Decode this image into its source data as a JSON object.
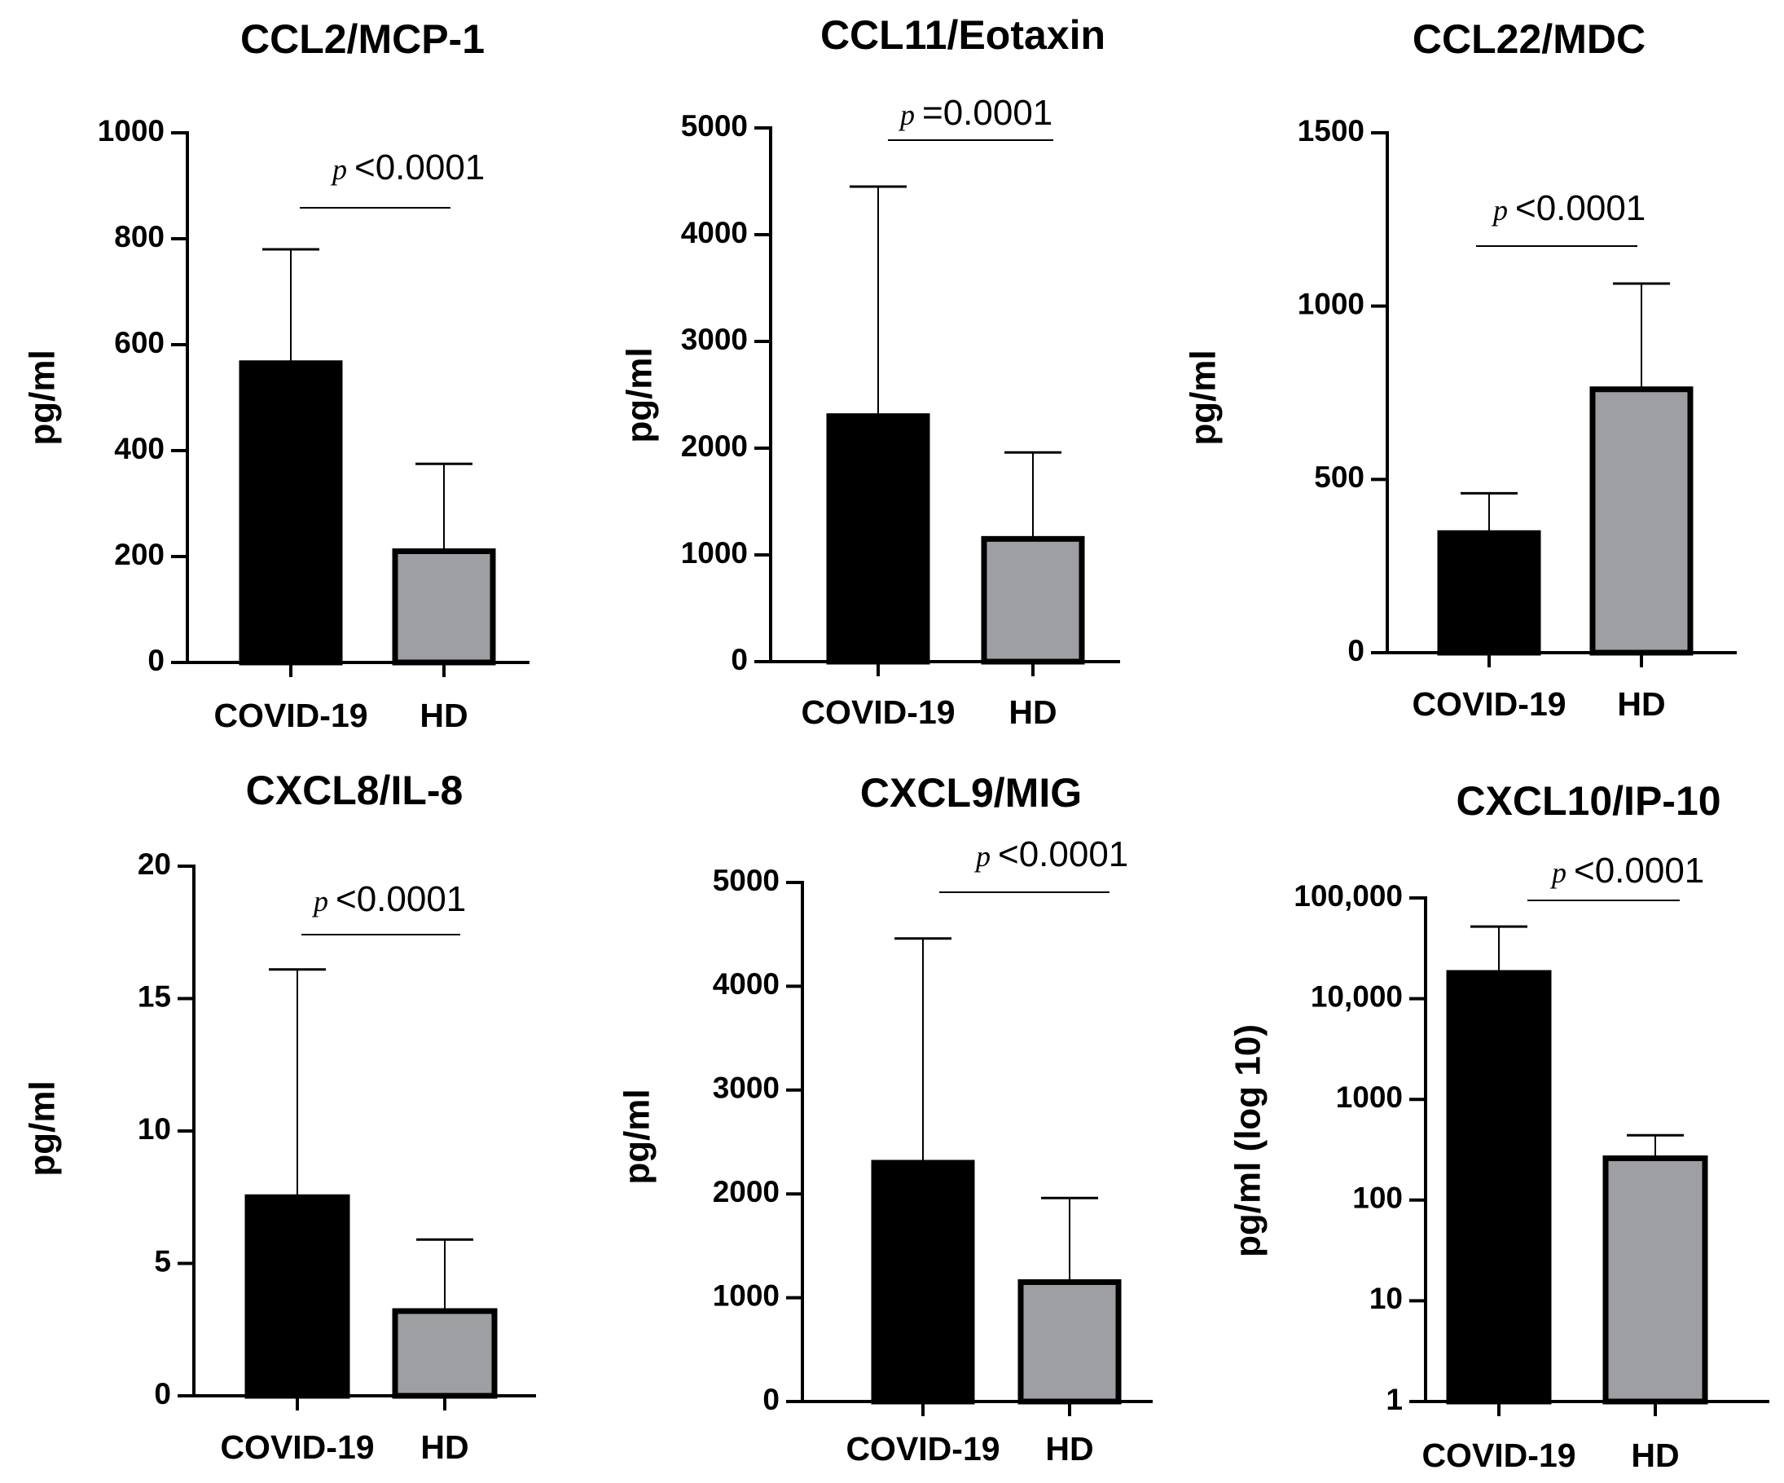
{
  "chart_data": [
    {
      "type": "bar",
      "title": "CCL2/MCP-1",
      "ylabel": "pg/ml",
      "scale": "linear",
      "ylim": [
        0,
        1000
      ],
      "yticks": [
        0,
        200,
        400,
        600,
        800,
        1000
      ],
      "ytick_labels": [
        "0",
        "200",
        "400",
        "600",
        "800",
        "1000"
      ],
      "categories": [
        "COVID-19",
        "HD"
      ],
      "values": [
        565,
        210
      ],
      "error_upper": [
        780,
        375
      ],
      "bar_colors": [
        "#000000",
        "#9d9fa2"
      ],
      "pvalue": {
        "symbol": "p",
        "text": "<0.0001"
      }
    },
    {
      "type": "bar",
      "title": "CCL11/Eotaxin",
      "ylabel": "pg/ml",
      "scale": "linear",
      "ylim": [
        0,
        5000
      ],
      "yticks": [
        0,
        1000,
        2000,
        3000,
        4000,
        5000
      ],
      "ytick_labels": [
        "0",
        "1000",
        "2000",
        "3000",
        "4000",
        "5000"
      ],
      "categories": [
        "COVID-19",
        "HD"
      ],
      "values": [
        2300,
        1150
      ],
      "error_upper": [
        4450,
        1960
      ],
      "bar_colors": [
        "#000000",
        "#9d9fa2"
      ],
      "pvalue": {
        "symbol": "p",
        "text": "=0.0001"
      }
    },
    {
      "type": "bar",
      "title": "CCL22/MDC",
      "ylabel": "pg/ml",
      "scale": "linear",
      "ylim": [
        0,
        1500
      ],
      "yticks": [
        0,
        500,
        1000,
        1500
      ],
      "ytick_labels": [
        "0",
        "500",
        "1000",
        "1500"
      ],
      "categories": [
        "COVID-19",
        "HD"
      ],
      "values": [
        345,
        760
      ],
      "error_upper": [
        460,
        1065
      ],
      "bar_colors": [
        "#000000",
        "#9d9fa2"
      ],
      "pvalue": {
        "symbol": "p",
        "text": "<0.0001"
      }
    },
    {
      "type": "bar",
      "title": "CXCL8/IL-8",
      "ylabel": "pg/ml",
      "scale": "linear",
      "ylim": [
        0,
        20
      ],
      "yticks": [
        0,
        5,
        10,
        15,
        20
      ],
      "ytick_labels": [
        "0",
        "5",
        "10",
        "15",
        "20"
      ],
      "categories": [
        "COVID-19",
        "HD"
      ],
      "values": [
        7.5,
        3.2
      ],
      "error_upper": [
        16.1,
        5.9
      ],
      "bar_colors": [
        "#000000",
        "#9d9fa2"
      ],
      "pvalue": {
        "symbol": "p",
        "text": "<0.0001"
      }
    },
    {
      "type": "bar",
      "title": "CXCL9/MIG",
      "ylabel": "pg/ml",
      "scale": "linear",
      "ylim": [
        0,
        5000
      ],
      "yticks": [
        0,
        1000,
        2000,
        3000,
        4000,
        5000
      ],
      "ytick_labels": [
        "0",
        "1000",
        "2000",
        "3000",
        "4000",
        "5000"
      ],
      "categories": [
        "COVID-19",
        "HD"
      ],
      "values": [
        2300,
        1150
      ],
      "error_upper": [
        4460,
        1960
      ],
      "bar_colors": [
        "#000000",
        "#9d9fa2"
      ],
      "pvalue": {
        "symbol": "p",
        "text": "<0.0001"
      }
    },
    {
      "type": "bar",
      "title": "CXCL10/IP-10",
      "ylabel": "pg/ml  (log 10)",
      "scale": "log",
      "ylim": [
        1,
        100000
      ],
      "yticks": [
        1,
        10,
        100,
        1000,
        10000,
        100000
      ],
      "ytick_labels": [
        "1",
        "10",
        "100",
        "1000",
        "10,000",
        "100,000"
      ],
      "categories": [
        "COVID-19",
        "HD"
      ],
      "values": [
        18000,
        260
      ],
      "error_upper": [
        52000,
        440
      ],
      "bar_colors": [
        "#000000",
        "#9d9fa2"
      ],
      "pvalue": {
        "symbol": "p",
        "text": "<0.0001"
      }
    }
  ]
}
